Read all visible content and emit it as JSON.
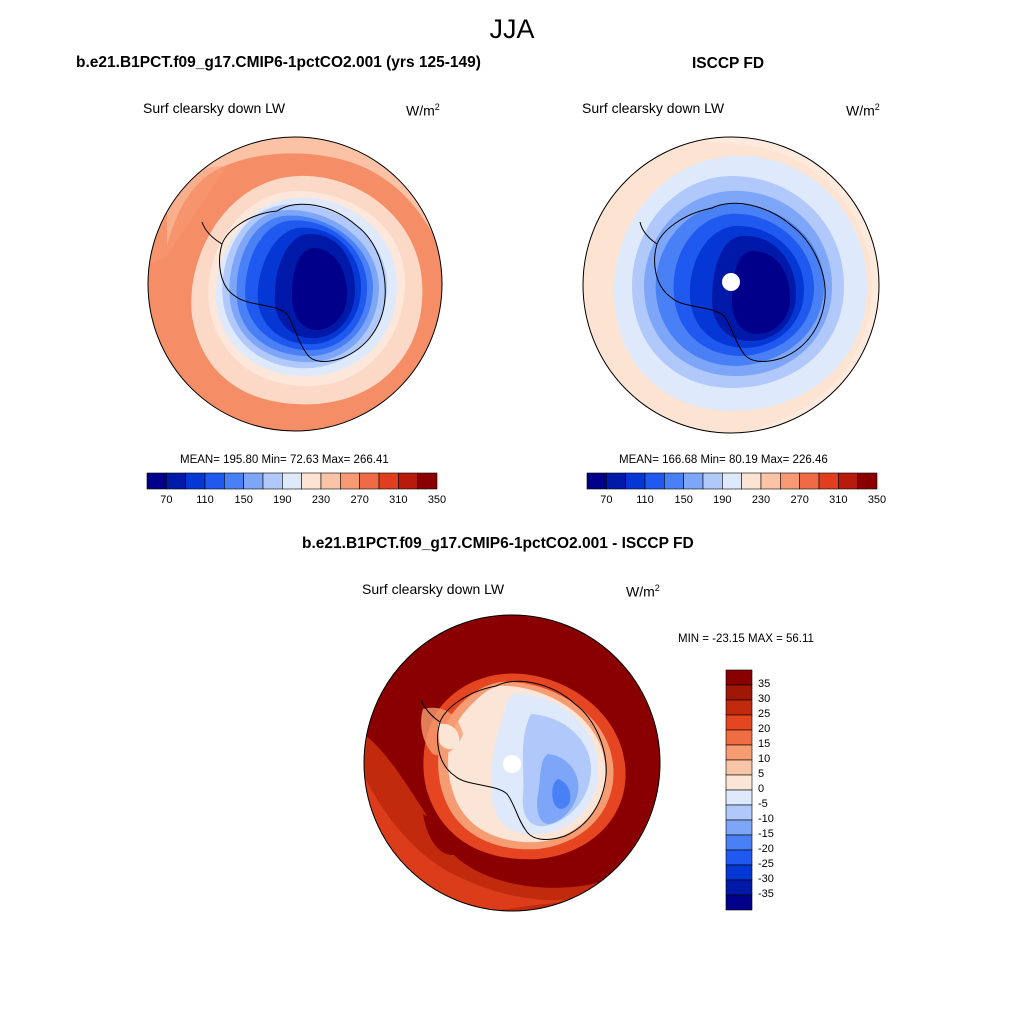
{
  "season": "JJA",
  "colors": {
    "abs_scale": [
      "#00008a",
      "#0019a8",
      "#0537d4",
      "#2059f0",
      "#4a80f5",
      "#7ea6f8",
      "#b0c9fa",
      "#dfe9fc",
      "#fde3d2",
      "#fbc4a6",
      "#f79a73",
      "#f06a45",
      "#e03e1f",
      "#b81a0c",
      "#8a0000"
    ],
    "diff_scale": [
      "#00008a",
      "#0019a8",
      "#0537d4",
      "#2059f0",
      "#4a80f5",
      "#7ea6f8",
      "#b0c9fa",
      "#dfe9fc",
      "#fbe5d6",
      "#f9c5a8",
      "#f69c72",
      "#f06c43",
      "#e54520",
      "#c22a0d",
      "#a01705",
      "#8a0000"
    ],
    "missing": "#ffffff",
    "coast": "#000000"
  },
  "panels": [
    {
      "title": "b.e21.B1PCT.f09_g17.CMIP6-1pctCO2.001 (yrs 125-149)",
      "variable": "Surf clearsky down LW",
      "units": "W/m",
      "units_exp": "2",
      "stats": "MEAN= 195.80  Min=  72.63  Max= 266.41",
      "ticks": [
        "70",
        "110",
        "150",
        "190",
        "230",
        "270",
        "310",
        "350"
      ]
    },
    {
      "title": "ISCCP FD",
      "variable": "Surf clearsky down LW",
      "units": "W/m",
      "units_exp": "2",
      "stats": "MEAN= 166.68  Min=  80.19  Max= 226.46",
      "ticks": [
        "70",
        "110",
        "150",
        "190",
        "230",
        "270",
        "310",
        "350"
      ]
    }
  ],
  "diff": {
    "title": "b.e21.B1PCT.f09_g17.CMIP6-1pctCO2.001 - ISCCP FD",
    "variable": "Surf clearsky down LW",
    "units": "W/m",
    "units_exp": "2",
    "stats": "MIN = -23.15 MAX =  56.11",
    "ticks": [
      "35",
      "30",
      "25",
      "20",
      "15",
      "10",
      "5",
      "0",
      "-5",
      "-10",
      "-15",
      "-20",
      "-25",
      "-30",
      "-35"
    ]
  }
}
